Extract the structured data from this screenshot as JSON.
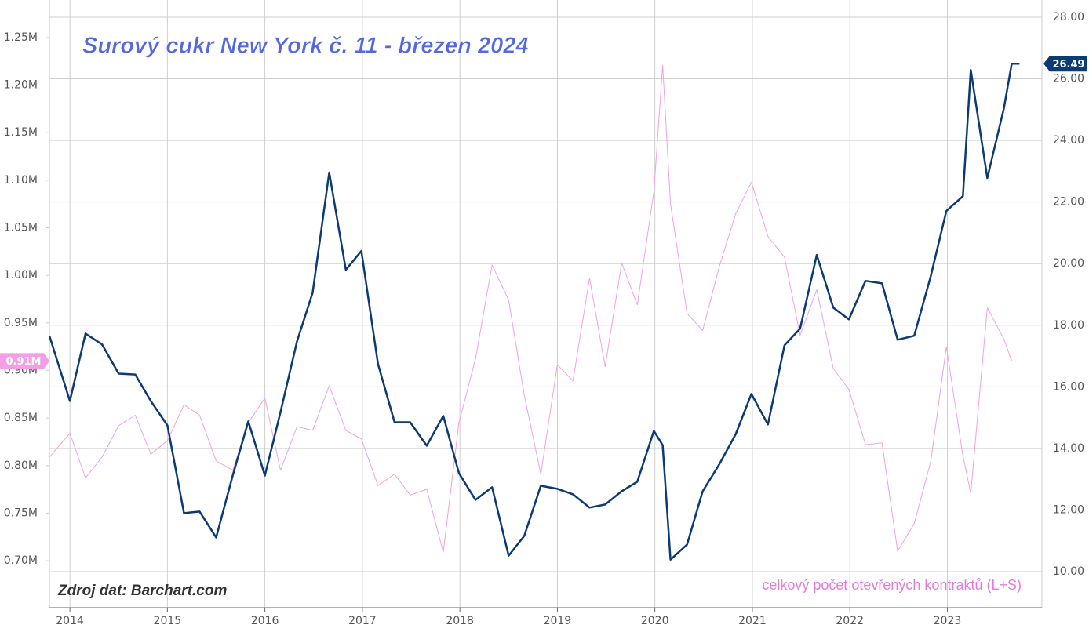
{
  "chart_data": {
    "type": "line",
    "title": "Surový cukr New York č. 11 - březen 2024",
    "source": "Zdroj dat: Barchart.com",
    "x": [
      2013.79,
      2014.0,
      2014.16,
      2014.33,
      2014.5,
      2014.67,
      2014.83,
      2015.0,
      2015.17,
      2015.33,
      2015.5,
      2015.67,
      2015.83,
      2016.0,
      2016.16,
      2016.33,
      2016.49,
      2016.66,
      2016.83,
      2016.99,
      2017.16,
      2017.33,
      2017.49,
      2017.66,
      2017.83,
      2017.99,
      2018.16,
      2018.33,
      2018.5,
      2018.66,
      2018.83,
      2019.0,
      2019.16,
      2019.33,
      2019.49,
      2019.66,
      2019.82,
      2019.99,
      2020.08,
      2020.16,
      2020.33,
      2020.49,
      2020.66,
      2020.83,
      2020.99,
      2021.16,
      2021.33,
      2021.49,
      2021.66,
      2021.83,
      2021.99,
      2022.16,
      2022.33,
      2022.49,
      2022.66,
      2022.83,
      2022.99,
      2023.16,
      2023.24,
      2023.41,
      2023.58,
      2023.66,
      2023.74
    ],
    "series": [
      {
        "color": "#0b3a74",
        "axis": "y2",
        "values": [
          17.66,
          15.54,
          17.73,
          17.38,
          16.43,
          16.4,
          15.54,
          14.75,
          11.9,
          11.95,
          11.11,
          13.12,
          14.88,
          13.12,
          15.18,
          17.48,
          19.06,
          22.96,
          19.8,
          20.41,
          16.74,
          14.85,
          14.85,
          14.09,
          15.06,
          13.2,
          12.33,
          12.74,
          10.52,
          11.16,
          12.79,
          12.69,
          12.51,
          12.08,
          12.18,
          12.61,
          12.92,
          14.57,
          14.11,
          10.39,
          10.88,
          12.61,
          13.48,
          14.47,
          15.77,
          14.78,
          17.35,
          17.89,
          20.28,
          18.57,
          18.19,
          19.44,
          19.36,
          17.53,
          17.66,
          19.59,
          21.71,
          22.19,
          26.29,
          22.78,
          25.04,
          26.49,
          26.49
        ]
      },
      {
        "name": "celkový počet otevřených kontraktů (L+S)",
        "color": "#f39ee6",
        "axis": "y",
        "values": [
          809000,
          834000,
          787000,
          809000,
          842000,
          853000,
          812000,
          826000,
          864000,
          853000,
          805000,
          795000,
          845000,
          871000,
          795000,
          841000,
          837000,
          884000,
          837000,
          828000,
          779000,
          791000,
          769000,
          775000,
          709000,
          845000,
          912000,
          1011000,
          974000,
          874000,
          791000,
          906000,
          889000,
          997000,
          904000,
          1013000,
          969000,
          1088000,
          1221000,
          1075000,
          960000,
          942000,
          1009000,
          1065000,
          1098000,
          1041000,
          1019000,
          937000,
          985000,
          902000,
          880000,
          822000,
          824000,
          710000,
          739000,
          804000,
          925000,
          810000,
          771000,
          966000,
          933000,
          910000,
          null
        ],
        "value_labels": [
          null,
          null,
          null,
          null,
          null,
          null,
          null,
          null,
          null,
          null,
          null,
          null,
          null,
          null,
          null,
          null,
          null,
          null,
          null,
          null,
          null,
          null,
          null,
          null,
          null,
          null,
          null,
          null,
          null,
          null,
          null,
          null,
          null,
          null,
          null,
          null,
          null,
          null,
          null,
          null,
          null,
          null,
          null,
          null,
          null,
          null,
          null,
          null,
          null,
          null,
          null,
          null,
          null,
          null,
          null,
          null,
          null,
          null,
          null,
          null,
          null,
          "0.91M",
          null
        ]
      }
    ],
    "xlim": [
      2013.79,
      2023.97
    ],
    "xticks": [
      2014,
      2015,
      2016,
      2017,
      2018,
      2019,
      2020,
      2021,
      2022,
      2023
    ],
    "ylim": [
      650600,
      1289500
    ],
    "yticks": [
      {
        "value": 700000,
        "label": "0.70M"
      },
      {
        "value": 750000,
        "label": "0.75M"
      },
      {
        "value": 800000,
        "label": "0.80M"
      },
      {
        "value": 850000,
        "label": "0.85M"
      },
      {
        "value": 900000,
        "label": "0.90M"
      },
      {
        "value": 950000,
        "label": "0.95M"
      },
      {
        "value": 1000000,
        "label": "1.00M"
      },
      {
        "value": 1050000,
        "label": "1.05M"
      },
      {
        "value": 1100000,
        "label": "1.10M"
      },
      {
        "value": 1150000,
        "label": "1.15M"
      },
      {
        "value": 1200000,
        "label": "1.20M"
      },
      {
        "value": 1250000,
        "label": "1.25M"
      }
    ],
    "y2lim": [
      8.83,
      28.56
    ],
    "y2ticks": [
      {
        "value": 10,
        "label": "10.00"
      },
      {
        "value": 12,
        "label": "12.00"
      },
      {
        "value": 14,
        "label": "14.00"
      },
      {
        "value": 16,
        "label": "16.00"
      },
      {
        "value": 18,
        "label": "18.00"
      },
      {
        "value": 20,
        "label": "20.00"
      },
      {
        "value": 22,
        "label": "22.00"
      },
      {
        "value": 24,
        "label": "24.00"
      },
      {
        "value": 26,
        "label": "26.00"
      },
      {
        "value": 28,
        "label": "28.00"
      }
    ],
    "grid": true
  }
}
